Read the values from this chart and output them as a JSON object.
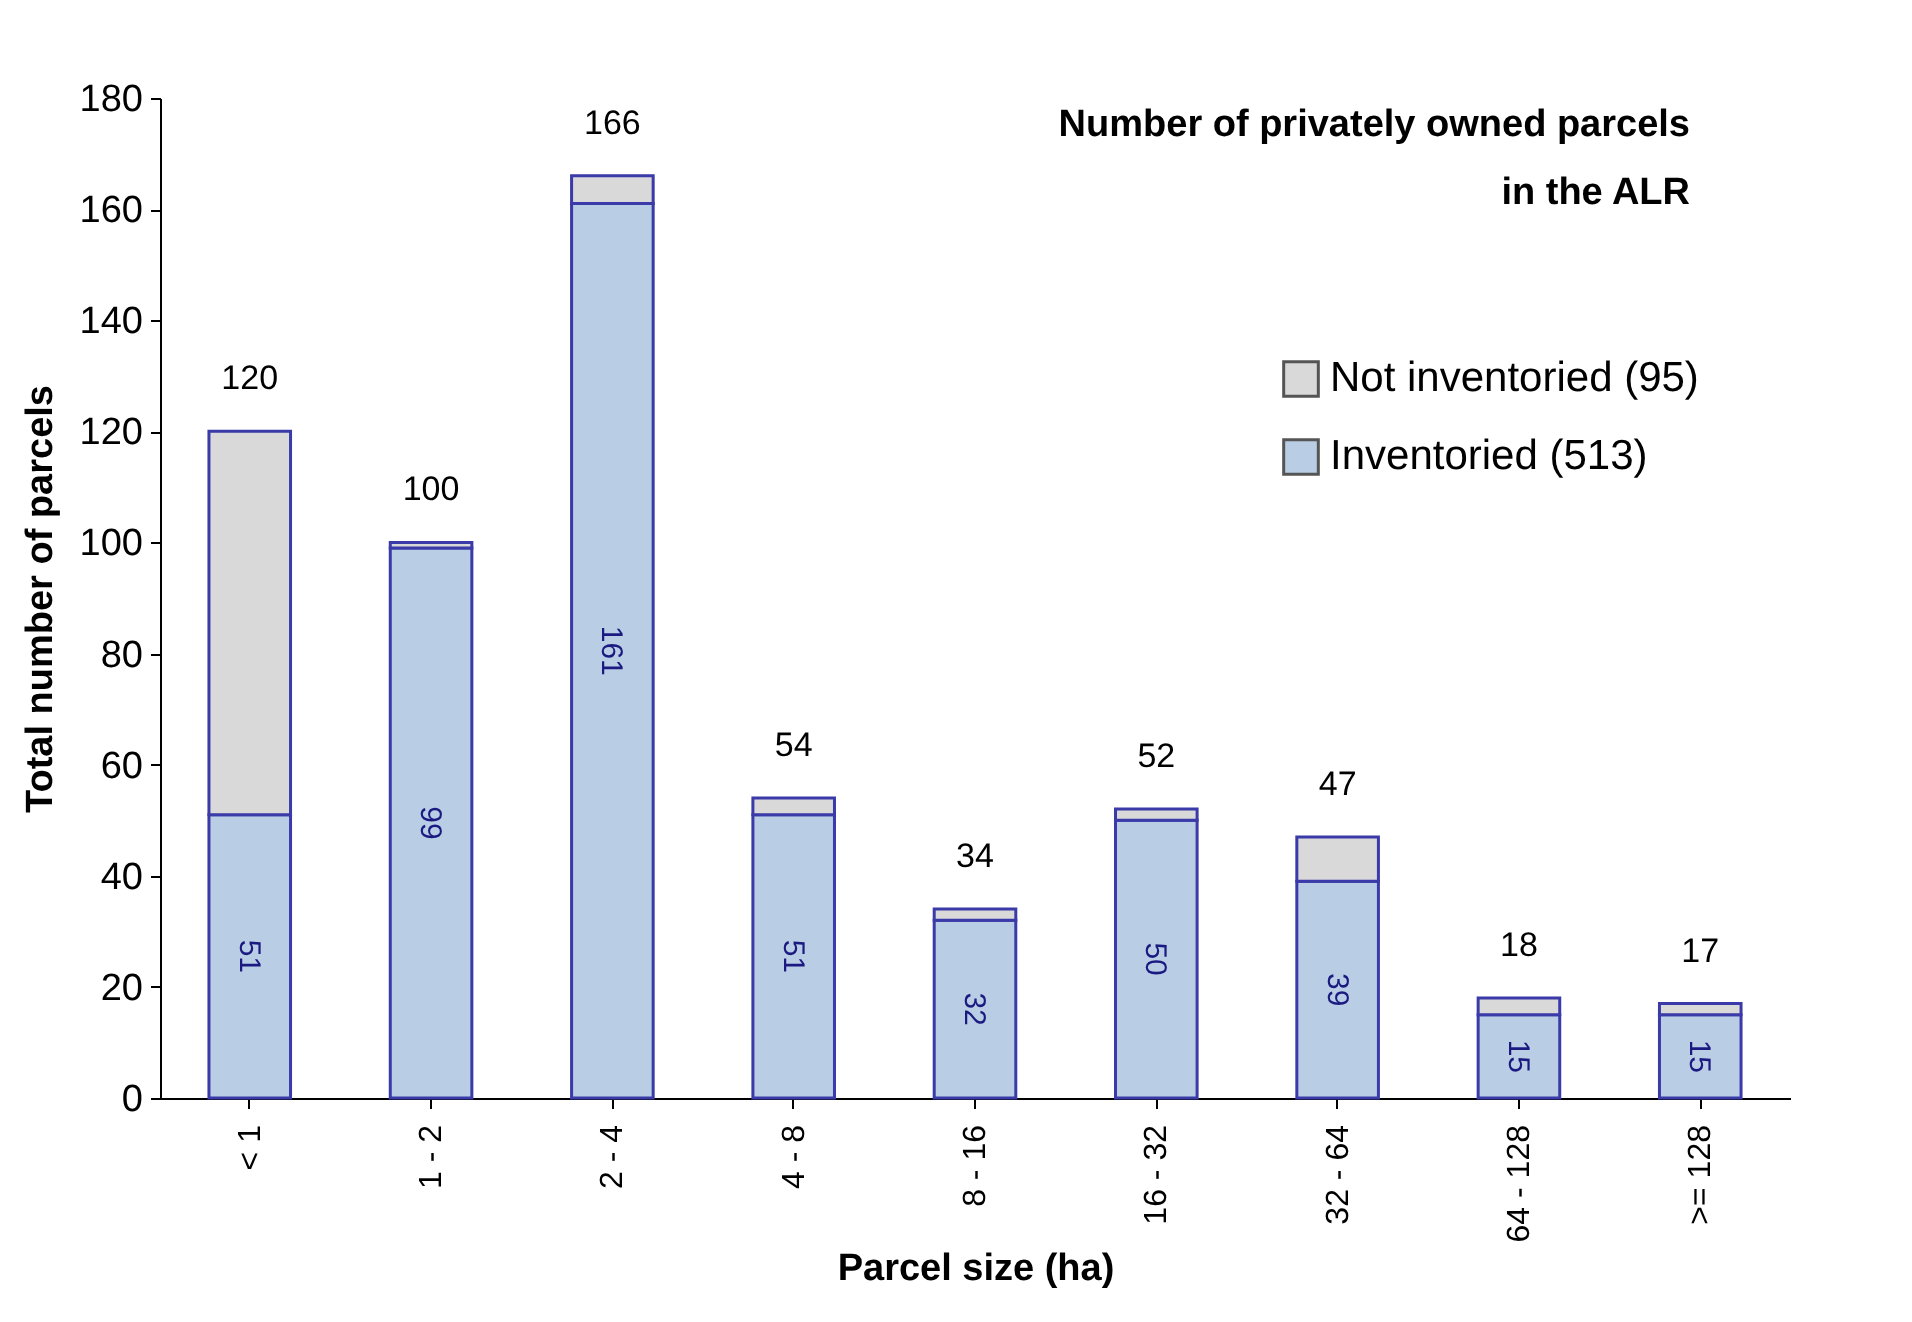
{
  "chart_data": {
    "type": "bar",
    "title": "Number of privately owned parcels\nin the ALR",
    "xlabel": "Parcel size (ha)",
    "ylabel": "Total number of parcels",
    "categories": [
      "< 1",
      "1 - 2",
      "2 - 4",
      "4 - 8",
      "8 - 16",
      "16 - 32",
      "32 - 64",
      "64 - 128",
      ">= 128"
    ],
    "stacked": true,
    "ylim": [
      0,
      180
    ],
    "yticks": [
      0,
      20,
      40,
      60,
      80,
      100,
      120,
      140,
      160,
      180
    ],
    "grid": false,
    "legend": "top right",
    "series": [
      {
        "name": "Inventoried (513)",
        "color": "#b9cde5",
        "values": [
          51,
          99,
          161,
          51,
          32,
          50,
          39,
          15,
          15
        ],
        "value_labels": [
          "51",
          "99",
          "161",
          "51",
          "32",
          "50",
          "39",
          "15",
          "15"
        ]
      },
      {
        "name": "Not inventoried (95)",
        "color": "#d9d9d9",
        "values": [
          69,
          1,
          5,
          3,
          2,
          2,
          8,
          3,
          2
        ]
      }
    ],
    "totals": [
      "120",
      "100",
      "166",
      "54",
      "34",
      "52",
      "47",
      "18",
      "17"
    ]
  }
}
